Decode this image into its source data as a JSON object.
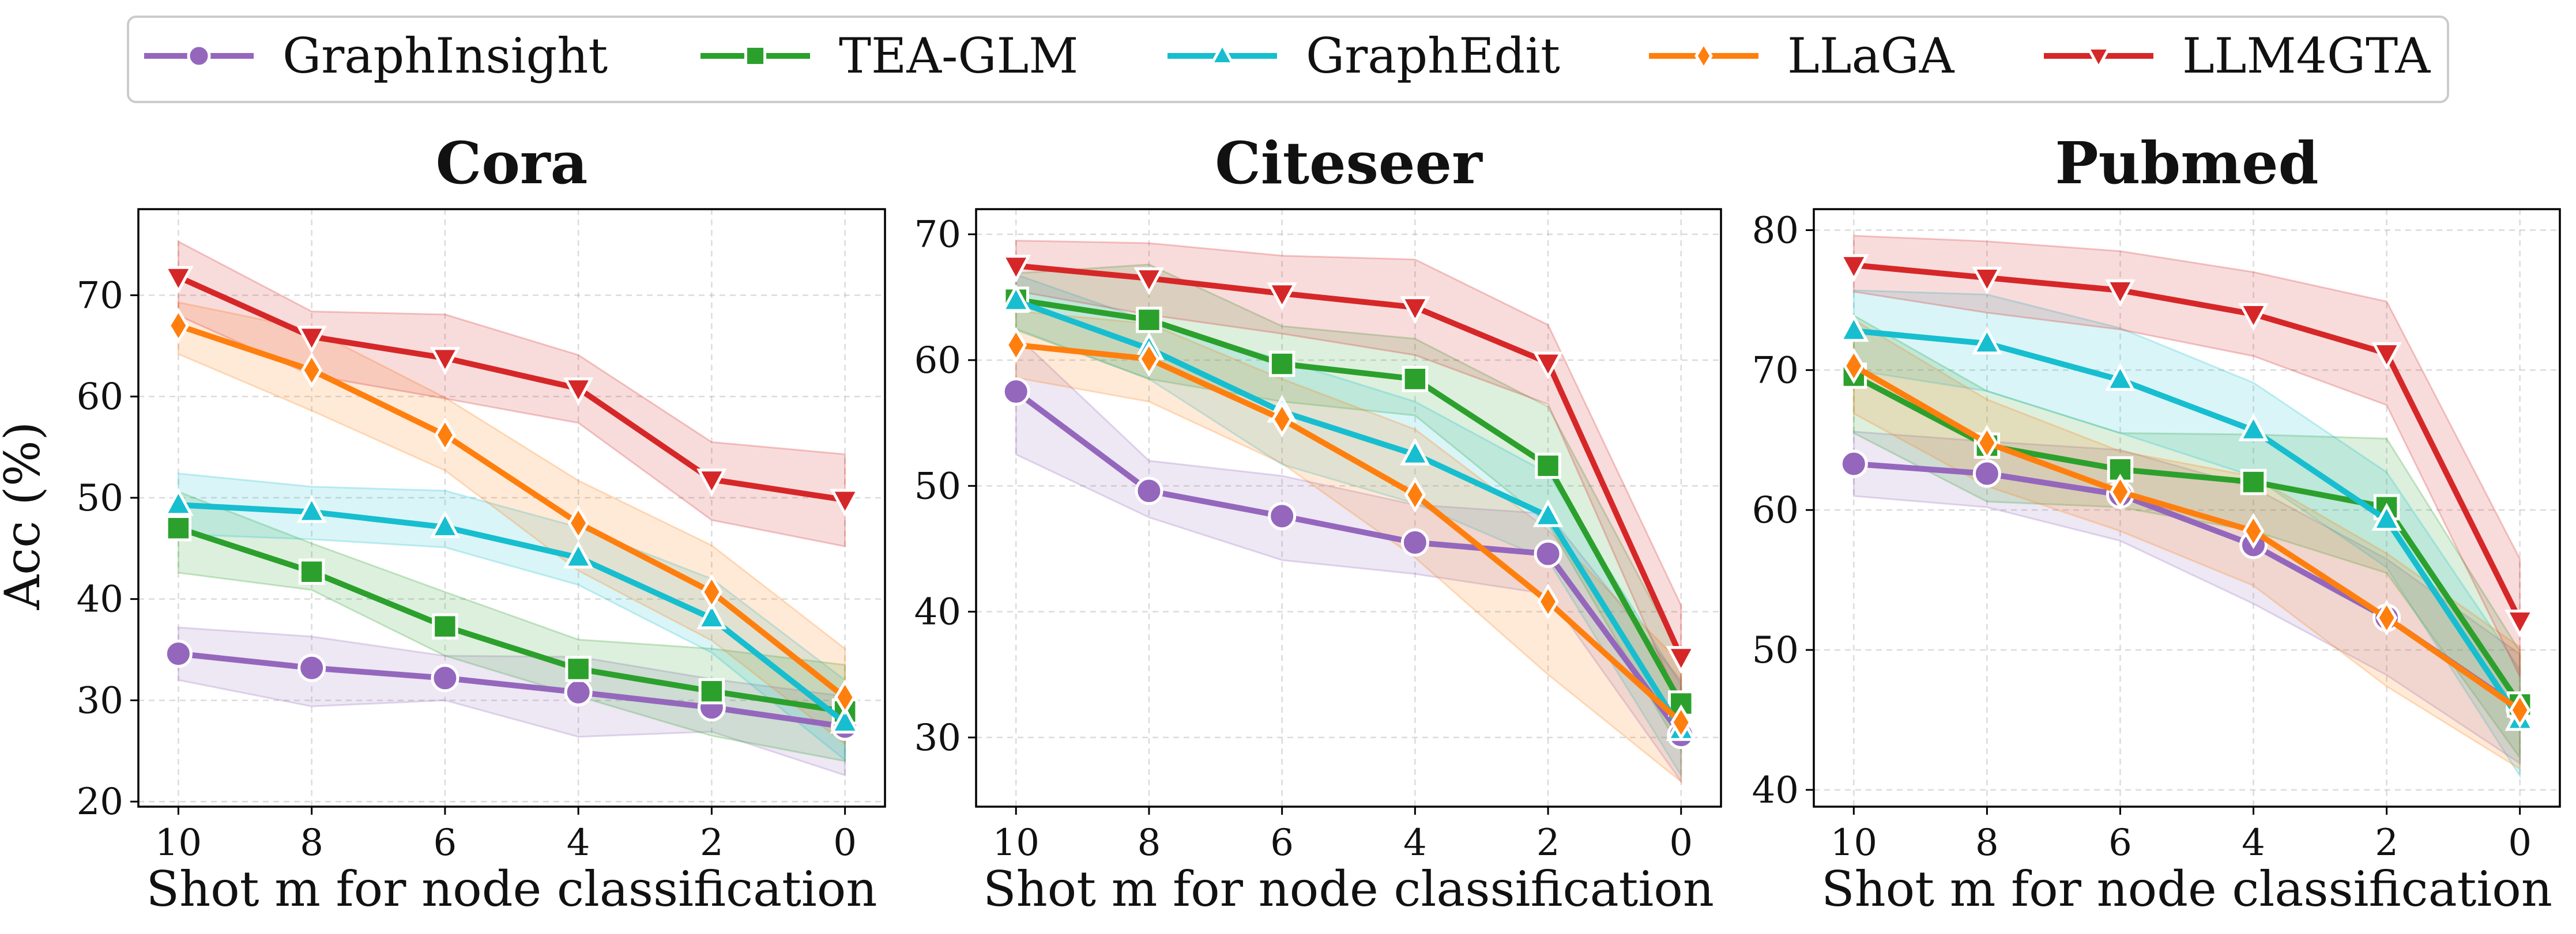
{
  "legend": {
    "position": "top-center",
    "entries": [
      {
        "name": "GraphInsight",
        "color": "#9467bd",
        "marker": "circle"
      },
      {
        "name": "TEA-GLM",
        "color": "#2ca02c",
        "marker": "square"
      },
      {
        "name": "GraphEdit",
        "color": "#17becf",
        "marker": "triangle-up"
      },
      {
        "name": "LLaGA",
        "color": "#ff7f0e",
        "marker": "diamond"
      },
      {
        "name": "LLM4GTA",
        "color": "#d62728",
        "marker": "triangle-down"
      }
    ]
  },
  "ylabel": "Acc (%)",
  "chart_data": [
    {
      "type": "line",
      "title": "Cora",
      "xlabel": "Shot m for node classification",
      "ylabel": "Acc (%)",
      "x": [
        10,
        8,
        6,
        4,
        2,
        0
      ],
      "xticks": [
        "10",
        "8",
        "6",
        "4",
        "2",
        "0"
      ],
      "ylim": [
        19.5,
        78.5
      ],
      "yticks": [
        20,
        30,
        40,
        50,
        60,
        70
      ],
      "grid": true,
      "series": [
        {
          "name": "GraphInsight",
          "values": [
            34.6,
            33.2,
            32.2,
            30.8,
            29.3,
            27.4
          ],
          "band": [
            [
              32.0,
              37.2
            ],
            [
              29.4,
              36.3
            ],
            [
              30.0,
              34.4
            ],
            [
              26.4,
              34.3
            ],
            [
              26.9,
              32.1
            ],
            [
              22.6,
              30.4
            ]
          ]
        },
        {
          "name": "TEA-GLM",
          "values": [
            47.0,
            42.7,
            37.3,
            33.1,
            30.9,
            28.9
          ],
          "band": [
            [
              42.6,
              50.6
            ],
            [
              40.9,
              45.5
            ],
            [
              34.4,
              40.7
            ],
            [
              30.4,
              36.0
            ],
            [
              26.5,
              35.1
            ],
            [
              24.0,
              33.5
            ]
          ]
        },
        {
          "name": "GraphEdit",
          "values": [
            49.3,
            48.6,
            47.1,
            44.1,
            38.1,
            27.8
          ],
          "band": [
            [
              46.4,
              52.4
            ],
            [
              45.9,
              51.1
            ],
            [
              45.1,
              50.7
            ],
            [
              41.4,
              47.1
            ],
            [
              34.7,
              42.0
            ],
            [
              24.1,
              32.0
            ]
          ]
        },
        {
          "name": "LLaGA",
          "values": [
            67.0,
            62.6,
            56.2,
            47.5,
            40.7,
            30.3
          ],
          "band": [
            [
              64.2,
              69.3
            ],
            [
              58.6,
              66.6
            ],
            [
              52.7,
              59.9
            ],
            [
              42.8,
              51.7
            ],
            [
              35.9,
              45.3
            ],
            [
              25.7,
              35.1
            ]
          ]
        },
        {
          "name": "LLM4GTA",
          "values": [
            71.8,
            65.9,
            63.8,
            60.8,
            51.8,
            49.8
          ],
          "band": [
            [
              68.0,
              75.3
            ],
            [
              62.1,
              68.4
            ],
            [
              59.8,
              68.1
            ],
            [
              57.4,
              64.1
            ],
            [
              47.8,
              55.5
            ],
            [
              45.2,
              54.3
            ]
          ]
        }
      ]
    },
    {
      "type": "line",
      "title": "Citeseer",
      "xlabel": "Shot m for node classification",
      "ylabel": "",
      "x": [
        10,
        8,
        6,
        4,
        2,
        0
      ],
      "xticks": [
        "10",
        "8",
        "6",
        "4",
        "2",
        "0"
      ],
      "ylim": [
        24.5,
        72.0
      ],
      "yticks": [
        30,
        40,
        50,
        60,
        70
      ],
      "grid": true,
      "series": [
        {
          "name": "GraphInsight",
          "values": [
            57.5,
            49.6,
            47.6,
            45.5,
            44.6,
            30.2
          ],
          "band": [
            [
              52.5,
              62.0
            ],
            [
              47.5,
              52.0
            ],
            [
              44.1,
              50.8
            ],
            [
              43.0,
              48.5
            ],
            [
              41.4,
              47.8
            ],
            [
              26.5,
              34.5
            ]
          ]
        },
        {
          "name": "TEA-GLM",
          "values": [
            64.8,
            63.2,
            59.7,
            58.5,
            51.6,
            32.7
          ],
          "band": [
            [
              62.4,
              66.9
            ],
            [
              58.5,
              67.6
            ],
            [
              56.7,
              62.7
            ],
            [
              55.6,
              61.7
            ],
            [
              47.0,
              56.3
            ],
            [
              29.0,
              36.5
            ]
          ]
        },
        {
          "name": "GraphEdit",
          "values": [
            64.7,
            60.9,
            55.9,
            52.5,
            47.6,
            30.6
          ],
          "band": [
            [
              62.5,
              66.8
            ],
            [
              58.5,
              63.1
            ],
            [
              51.7,
              60.0
            ],
            [
              48.6,
              56.7
            ],
            [
              44.1,
              51.0
            ],
            [
              27.0,
              34.2
            ]
          ]
        },
        {
          "name": "LLaGA",
          "values": [
            61.2,
            60.1,
            55.3,
            49.3,
            40.8,
            31.2
          ],
          "band": [
            [
              58.6,
              63.9
            ],
            [
              56.7,
              62.9
            ],
            [
              51.8,
              58.5
            ],
            [
              44.3,
              54.5
            ],
            [
              35.0,
              46.5
            ],
            [
              26.5,
              35.9
            ]
          ]
        },
        {
          "name": "LLM4GTA",
          "values": [
            67.5,
            66.5,
            65.3,
            64.2,
            59.8,
            36.4
          ],
          "band": [
            [
              65.5,
              69.5
            ],
            [
              63.6,
              69.3
            ],
            [
              62.1,
              68.3
            ],
            [
              60.4,
              68.0
            ],
            [
              56.5,
              62.8
            ],
            [
              32.5,
              40.5
            ]
          ]
        }
      ]
    },
    {
      "type": "line",
      "title": "Pubmed",
      "xlabel": "Shot m for node classification",
      "ylabel": "",
      "x": [
        10,
        8,
        6,
        4,
        2,
        0
      ],
      "xticks": [
        "10",
        "8",
        "6",
        "4",
        "2",
        "0"
      ],
      "ylim": [
        38.8,
        81.5
      ],
      "yticks": [
        40,
        50,
        60,
        70,
        80
      ],
      "grid": true,
      "series": [
        {
          "name": "GraphInsight",
          "values": [
            63.3,
            62.6,
            61.1,
            57.5,
            52.3,
            45.8
          ],
          "band": [
            [
              61.0,
              65.6
            ],
            [
              60.2,
              64.9
            ],
            [
              57.8,
              64.3
            ],
            [
              53.3,
              61.6
            ],
            [
              48.2,
              56.5
            ],
            [
              41.9,
              49.7
            ]
          ]
        },
        {
          "name": "TEA-GLM",
          "values": [
            69.6,
            64.6,
            62.9,
            62.0,
            60.2,
            46.1
          ],
          "band": [
            [
              65.5,
              73.9
            ],
            [
              60.6,
              68.5
            ],
            [
              60.2,
              65.5
            ],
            [
              58.5,
              65.4
            ],
            [
              55.5,
              65.1
            ],
            [
              42.3,
              49.9
            ]
          ]
        },
        {
          "name": "GraphEdit",
          "values": [
            72.8,
            71.9,
            69.3,
            65.7,
            59.3,
            45.0
          ],
          "band": [
            [
              70.0,
              75.7
            ],
            [
              68.5,
              75.4
            ],
            [
              65.5,
              73.0
            ],
            [
              62.4,
              69.1
            ],
            [
              55.9,
              62.7
            ],
            [
              41.0,
              48.6
            ]
          ]
        },
        {
          "name": "LLaGA",
          "values": [
            70.3,
            64.8,
            61.3,
            58.5,
            52.3,
            45.7
          ],
          "band": [
            [
              66.9,
              73.6
            ],
            [
              61.7,
              67.9
            ],
            [
              58.5,
              64.2
            ],
            [
              54.6,
              62.4
            ],
            [
              47.4,
              56.9
            ],
            [
              41.5,
              50.2
            ]
          ]
        },
        {
          "name": "LLM4GTA",
          "values": [
            77.5,
            76.6,
            75.7,
            74.0,
            71.2,
            52.1
          ],
          "band": [
            [
              75.6,
              79.6
            ],
            [
              74.1,
              79.2
            ],
            [
              72.9,
              78.5
            ],
            [
              71.0,
              77.0
            ],
            [
              67.5,
              74.9
            ],
            [
              48.1,
              56.5
            ]
          ]
        }
      ]
    }
  ]
}
